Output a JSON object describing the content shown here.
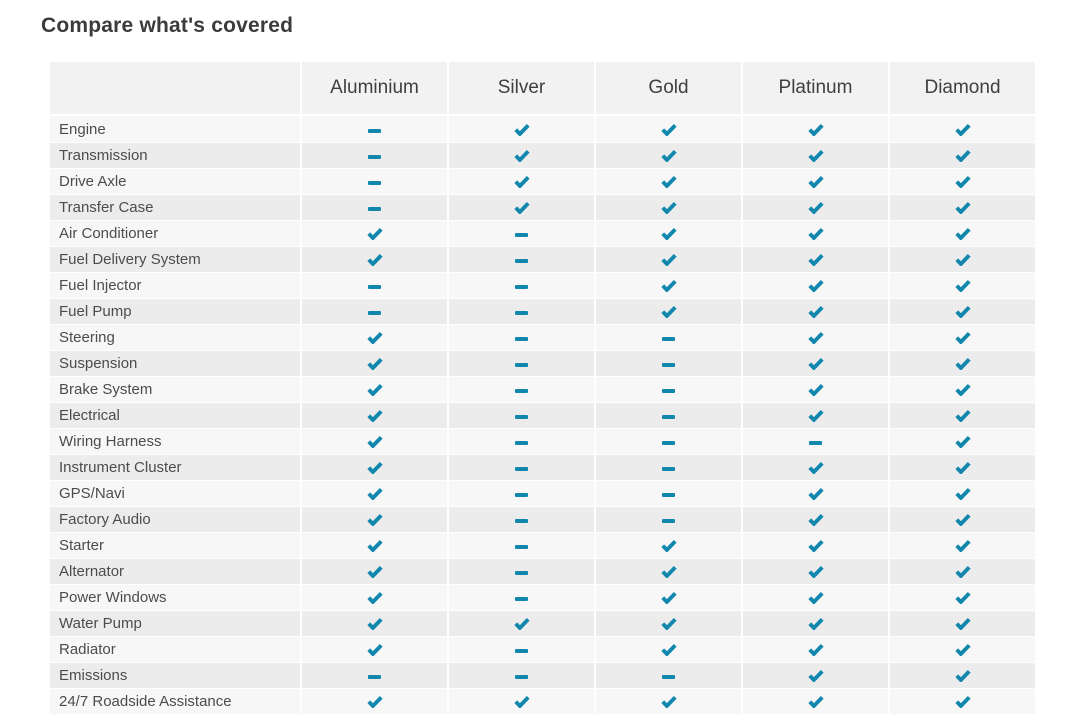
{
  "page": {
    "title": "Compare what's covered"
  },
  "table": {
    "columns": [
      "Aluminium",
      "Silver",
      "Gold",
      "Platinum",
      "Diamond"
    ],
    "icons": {
      "covered": "check-icon",
      "not_covered": "dash-icon"
    },
    "colors": {
      "accent": "#1287ae",
      "header_bg": "#f2f2f2",
      "row_odd": "#f7f7f7",
      "row_even": "#ececec"
    },
    "rows": [
      {
        "label": "Engine",
        "values": [
          false,
          true,
          true,
          true,
          true
        ]
      },
      {
        "label": "Transmission",
        "values": [
          false,
          true,
          true,
          true,
          true
        ]
      },
      {
        "label": "Drive Axle",
        "values": [
          false,
          true,
          true,
          true,
          true
        ]
      },
      {
        "label": "Transfer Case",
        "values": [
          false,
          true,
          true,
          true,
          true
        ]
      },
      {
        "label": "Air Conditioner",
        "values": [
          true,
          false,
          true,
          true,
          true
        ]
      },
      {
        "label": "Fuel Delivery System",
        "values": [
          true,
          false,
          true,
          true,
          true
        ]
      },
      {
        "label": "Fuel Injector",
        "values": [
          false,
          false,
          true,
          true,
          true
        ]
      },
      {
        "label": "Fuel Pump",
        "values": [
          false,
          false,
          true,
          true,
          true
        ]
      },
      {
        "label": "Steering",
        "values": [
          true,
          false,
          false,
          true,
          true
        ]
      },
      {
        "label": "Suspension",
        "values": [
          true,
          false,
          false,
          true,
          true
        ]
      },
      {
        "label": "Brake System",
        "values": [
          true,
          false,
          false,
          true,
          true
        ]
      },
      {
        "label": "Electrical",
        "values": [
          true,
          false,
          false,
          true,
          true
        ]
      },
      {
        "label": "Wiring Harness",
        "values": [
          true,
          false,
          false,
          false,
          true
        ]
      },
      {
        "label": "Instrument Cluster",
        "values": [
          true,
          false,
          false,
          true,
          true
        ]
      },
      {
        "label": "GPS/Navi",
        "values": [
          true,
          false,
          false,
          true,
          true
        ]
      },
      {
        "label": "Factory Audio",
        "values": [
          true,
          false,
          false,
          true,
          true
        ]
      },
      {
        "label": "Starter",
        "values": [
          true,
          false,
          true,
          true,
          true
        ]
      },
      {
        "label": "Alternator",
        "values": [
          true,
          false,
          true,
          true,
          true
        ]
      },
      {
        "label": "Power Windows",
        "values": [
          true,
          false,
          true,
          true,
          true
        ]
      },
      {
        "label": "Water Pump",
        "values": [
          true,
          true,
          true,
          true,
          true
        ]
      },
      {
        "label": "Radiator",
        "values": [
          true,
          false,
          true,
          true,
          true
        ]
      },
      {
        "label": "Emissions",
        "values": [
          false,
          false,
          false,
          true,
          true
        ]
      },
      {
        "label": "24/7 Roadside Assistance",
        "values": [
          true,
          true,
          true,
          true,
          true
        ]
      }
    ]
  }
}
